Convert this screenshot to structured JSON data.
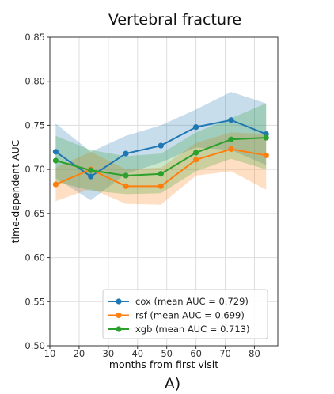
{
  "chart_data": {
    "type": "line",
    "title": "Vertebral fracture",
    "xlabel": "months from first visit",
    "ylabel": "time-dependent AUC",
    "panel_label": "A)",
    "xlim": [
      10,
      88
    ],
    "ylim": [
      0.5,
      0.85
    ],
    "x_ticks": [
      10,
      20,
      30,
      40,
      50,
      60,
      70,
      80
    ],
    "y_ticks": [
      0.5,
      0.55,
      0.6,
      0.65,
      0.7,
      0.75,
      0.8,
      0.85
    ],
    "grid": true,
    "legend_position": "bottom-center",
    "x": [
      12,
      24,
      36,
      48,
      60,
      72,
      84
    ],
    "series": [
      {
        "name": "cox (mean AUC = 0.729)",
        "color": "#1f77b4",
        "values": [
          0.72,
          0.692,
          0.718,
          0.727,
          0.748,
          0.756,
          0.74
        ],
        "upper": [
          0.752,
          0.72,
          0.738,
          0.75,
          0.768,
          0.788,
          0.775
        ],
        "lower": [
          0.69,
          0.665,
          0.695,
          0.708,
          0.725,
          0.722,
          0.705
        ]
      },
      {
        "name": "rsf (mean AUC = 0.699)",
        "color": "#ff7f0e",
        "values": [
          0.683,
          0.7,
          0.681,
          0.681,
          0.711,
          0.723,
          0.716
        ],
        "upper": [
          0.702,
          0.72,
          0.7,
          0.702,
          0.73,
          0.742,
          0.74
        ],
        "lower": [
          0.664,
          0.678,
          0.661,
          0.66,
          0.693,
          0.698,
          0.677
        ]
      },
      {
        "name": "xgb (mean AUC = 0.713)",
        "color": "#2ca02c",
        "values": [
          0.71,
          0.699,
          0.693,
          0.695,
          0.719,
          0.734,
          0.736
        ],
        "upper": [
          0.738,
          0.722,
          0.715,
          0.718,
          0.742,
          0.758,
          0.775
        ],
        "lower": [
          0.686,
          0.676,
          0.672,
          0.673,
          0.698,
          0.712,
          0.7
        ]
      }
    ]
  }
}
